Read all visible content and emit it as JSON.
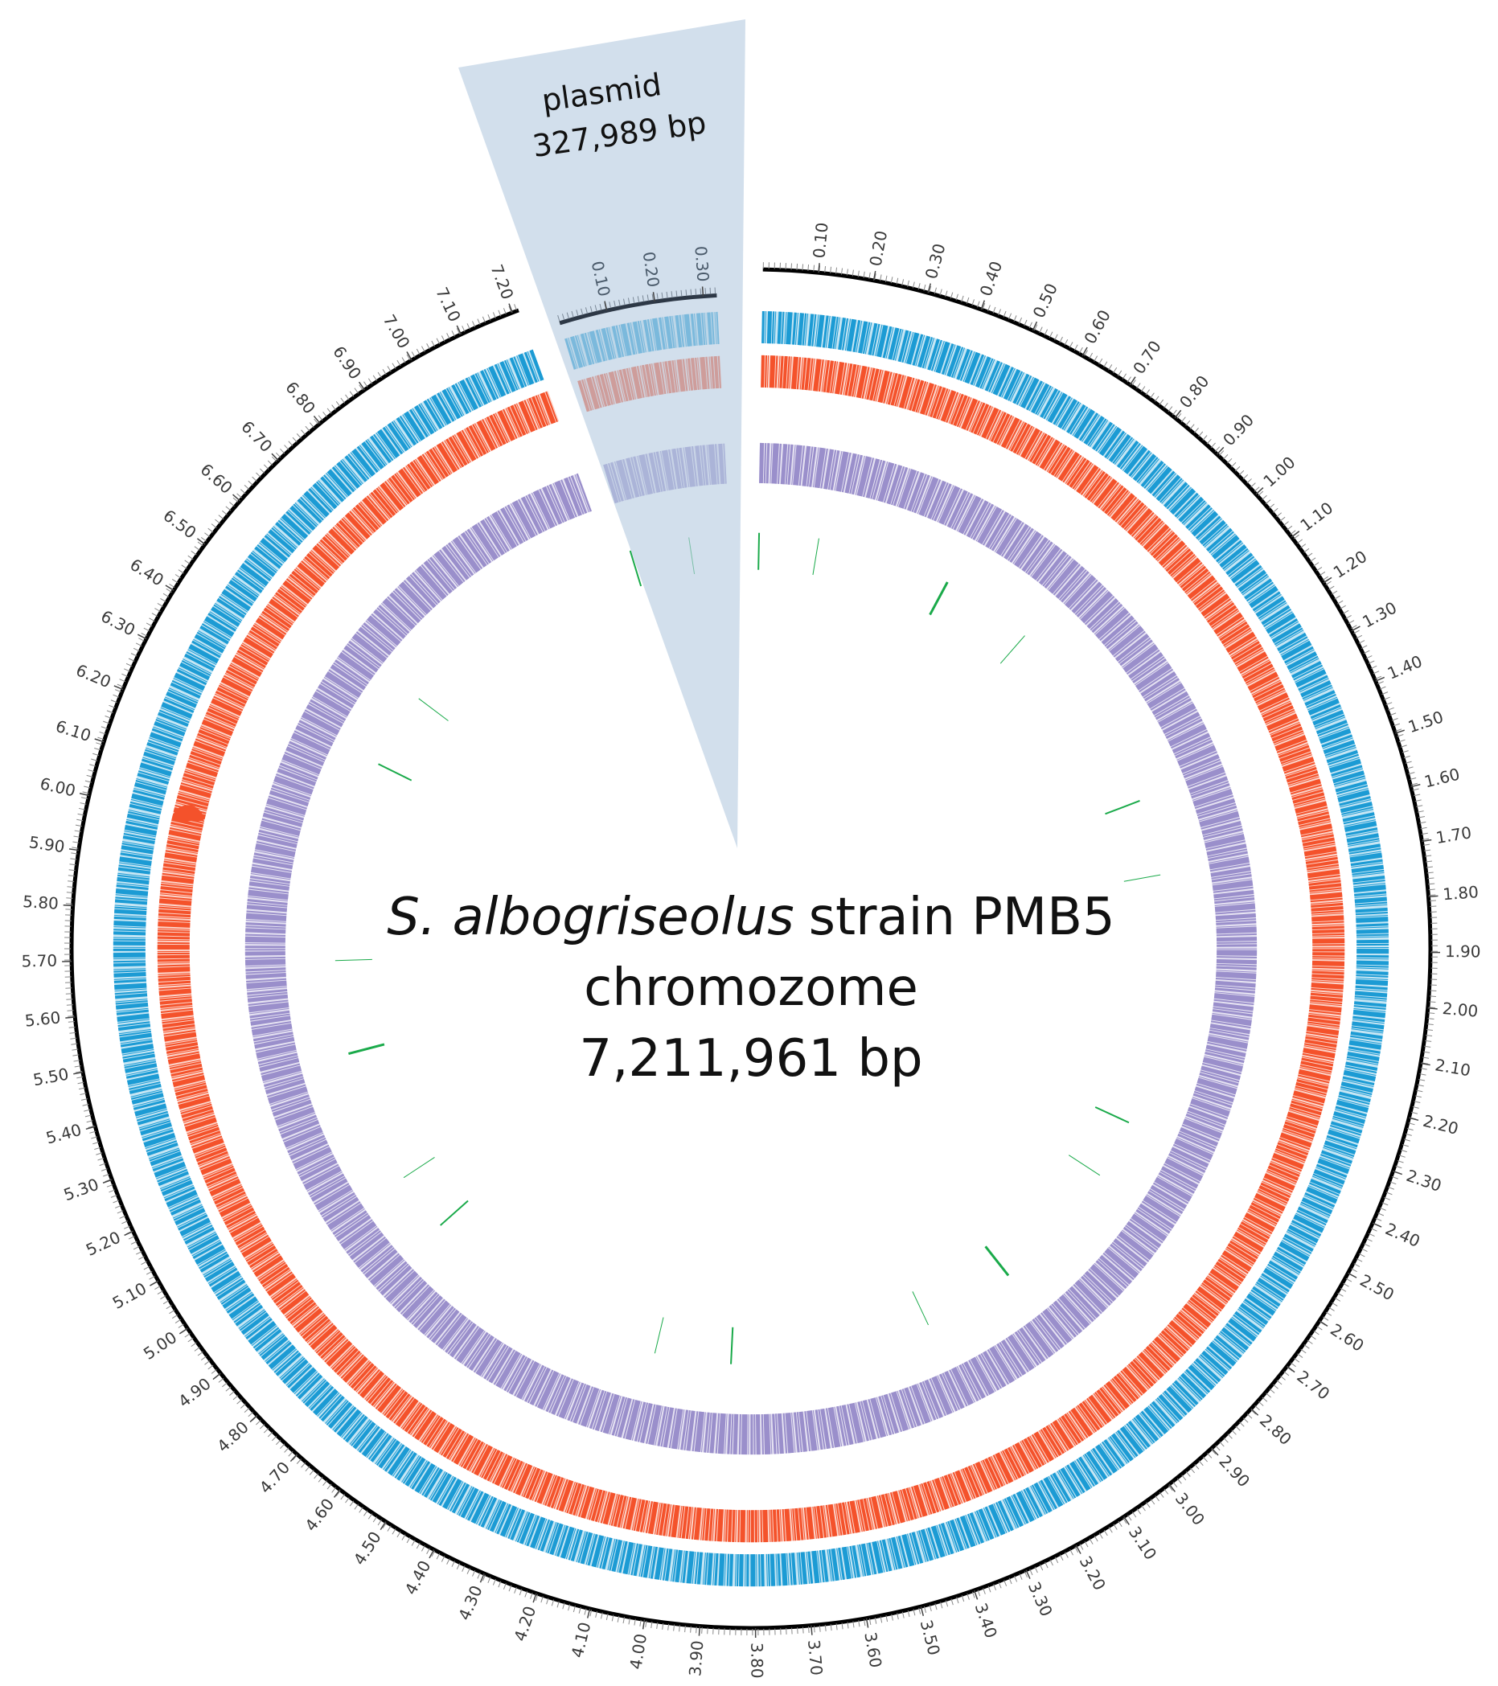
{
  "chromosome": {
    "title_italic": "S. albogriseolus",
    "title_rest": "strain PMB5",
    "subtitle": "chromozome",
    "size_label": "7,211,961 bp",
    "xlim": [
      0,
      7.211961
    ],
    "xticks": [
      {
        "value": 0.1,
        "label": "0.10"
      },
      {
        "value": 0.2,
        "label": "0.20"
      },
      {
        "value": 0.3,
        "label": "0.30"
      },
      {
        "value": 0.4,
        "label": "0.40"
      },
      {
        "value": 0.5,
        "label": "0.50"
      },
      {
        "value": 0.6,
        "label": "0.60"
      },
      {
        "value": 0.7,
        "label": "0.70"
      },
      {
        "value": 0.8,
        "label": "0.80"
      },
      {
        "value": 0.9,
        "label": "0.90"
      },
      {
        "value": 1.0,
        "label": "1.00"
      },
      {
        "value": 1.1,
        "label": "1.10"
      },
      {
        "value": 1.2,
        "label": "1.20"
      },
      {
        "value": 1.3,
        "label": "1.30"
      },
      {
        "value": 1.4,
        "label": "1.40"
      },
      {
        "value": 1.5,
        "label": "1.50"
      },
      {
        "value": 1.6,
        "label": "1.60"
      },
      {
        "value": 1.7,
        "label": "1.70"
      },
      {
        "value": 1.8,
        "label": "1.80"
      },
      {
        "value": 1.9,
        "label": "1.90"
      },
      {
        "value": 2.0,
        "label": "2.00"
      },
      {
        "value": 2.1,
        "label": "2.10"
      },
      {
        "value": 2.2,
        "label": "2.20"
      },
      {
        "value": 2.3,
        "label": "2.30"
      },
      {
        "value": 2.4,
        "label": "2.40"
      },
      {
        "value": 2.5,
        "label": "2.50"
      },
      {
        "value": 2.6,
        "label": "2.60"
      },
      {
        "value": 2.7,
        "label": "2.70"
      },
      {
        "value": 2.8,
        "label": "2.80"
      },
      {
        "value": 2.9,
        "label": "2.90"
      },
      {
        "value": 3.0,
        "label": "3.00"
      },
      {
        "value": 3.1,
        "label": "3.10"
      },
      {
        "value": 3.2,
        "label": "3.20"
      },
      {
        "value": 3.3,
        "label": "3.30"
      },
      {
        "value": 3.4,
        "label": "3.40"
      },
      {
        "value": 3.5,
        "label": "3.50"
      },
      {
        "value": 3.6,
        "label": "3.60"
      },
      {
        "value": 3.7,
        "label": "3.70"
      },
      {
        "value": 3.8,
        "label": "3.80"
      },
      {
        "value": 3.9,
        "label": "3.90"
      },
      {
        "value": 4.0,
        "label": "4.00"
      },
      {
        "value": 4.1,
        "label": "4.10"
      },
      {
        "value": 4.2,
        "label": "4.20"
      },
      {
        "value": 4.3,
        "label": "4.30"
      },
      {
        "value": 4.4,
        "label": "4.40"
      },
      {
        "value": 4.5,
        "label": "4.50"
      },
      {
        "value": 4.6,
        "label": "4.60"
      },
      {
        "value": 4.7,
        "label": "4.70"
      },
      {
        "value": 4.8,
        "label": "4.80"
      },
      {
        "value": 4.9,
        "label": "4.90"
      },
      {
        "value": 5.0,
        "label": "5.00"
      },
      {
        "value": 5.1,
        "label": "5.10"
      },
      {
        "value": 5.2,
        "label": "5.20"
      },
      {
        "value": 5.3,
        "label": "5.30"
      },
      {
        "value": 5.4,
        "label": "5.40"
      },
      {
        "value": 5.5,
        "label": "5.50"
      },
      {
        "value": 5.6,
        "label": "5.60"
      },
      {
        "value": 5.7,
        "label": "5.70"
      },
      {
        "value": 5.8,
        "label": "5.80"
      },
      {
        "value": 5.9,
        "label": "5.90"
      },
      {
        "value": 6.0,
        "label": "6.00"
      },
      {
        "value": 6.1,
        "label": "6.10"
      },
      {
        "value": 6.2,
        "label": "6.20"
      },
      {
        "value": 6.3,
        "label": "6.30"
      },
      {
        "value": 6.4,
        "label": "6.40"
      },
      {
        "value": 6.5,
        "label": "6.50"
      },
      {
        "value": 6.6,
        "label": "6.60"
      },
      {
        "value": 6.7,
        "label": "6.70"
      },
      {
        "value": 6.8,
        "label": "6.80"
      },
      {
        "value": 6.9,
        "label": "6.90"
      },
      {
        "value": 7.0,
        "label": "7.00"
      },
      {
        "value": 7.1,
        "label": "7.10"
      },
      {
        "value": 7.2,
        "label": "7.20"
      }
    ]
  },
  "plasmid": {
    "title": "plasmid",
    "size_label": "327,989 bp",
    "xlim": [
      0,
      0.327989
    ],
    "xticks": [
      {
        "value": 0.1,
        "label": "0.10"
      },
      {
        "value": 0.2,
        "label": "0.20"
      },
      {
        "value": 0.3,
        "label": "0.30"
      }
    ]
  }
}
